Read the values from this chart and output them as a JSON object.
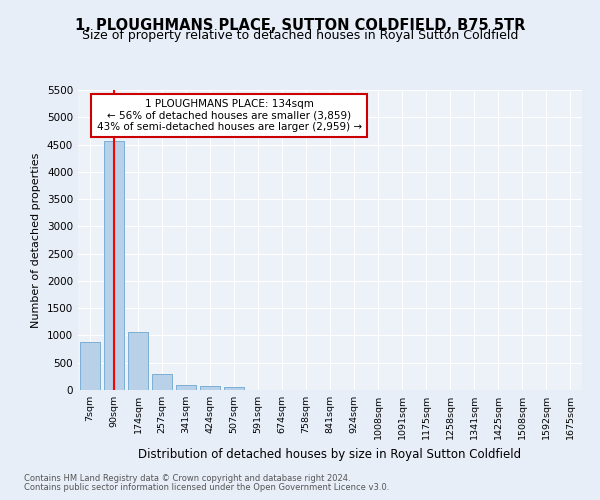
{
  "title": "1, PLOUGHMANS PLACE, SUTTON COLDFIELD, B75 5TR",
  "subtitle": "Size of property relative to detached houses in Royal Sutton Coldfield",
  "xlabel": "Distribution of detached houses by size in Royal Sutton Coldfield",
  "ylabel": "Number of detached properties",
  "footnote1": "Contains HM Land Registry data © Crown copyright and database right 2024.",
  "footnote2": "Contains public sector information licensed under the Open Government Licence v3.0.",
  "bar_labels": [
    "7sqm",
    "90sqm",
    "174sqm",
    "257sqm",
    "341sqm",
    "424sqm",
    "507sqm",
    "591sqm",
    "674sqm",
    "758sqm",
    "841sqm",
    "924sqm",
    "1008sqm",
    "1091sqm",
    "1175sqm",
    "1258sqm",
    "1341sqm",
    "1425sqm",
    "1508sqm",
    "1592sqm",
    "1675sqm"
  ],
  "bar_values": [
    880,
    4560,
    1060,
    290,
    90,
    75,
    50,
    5,
    5,
    5,
    5,
    5,
    5,
    5,
    5,
    5,
    5,
    5,
    5,
    5,
    5
  ],
  "bar_color": "#b8d0e8",
  "bar_edge_color": "#7aafd4",
  "annotation_title": "1 PLOUGHMANS PLACE: 134sqm",
  "annotation_line1": "← 56% of detached houses are smaller (3,859)",
  "annotation_line2": "43% of semi-detached houses are larger (2,959) →",
  "ylim": [
    0,
    5500
  ],
  "yticks": [
    0,
    500,
    1000,
    1500,
    2000,
    2500,
    3000,
    3500,
    4000,
    4500,
    5000,
    5500
  ],
  "bg_color": "#e8eef8",
  "plot_bg_color": "#edf2f9",
  "grid_color": "#ffffff",
  "title_fontsize": 10.5,
  "subtitle_fontsize": 9,
  "annotation_box_color": "#ffffff",
  "annotation_box_edge": "#cc0000"
}
